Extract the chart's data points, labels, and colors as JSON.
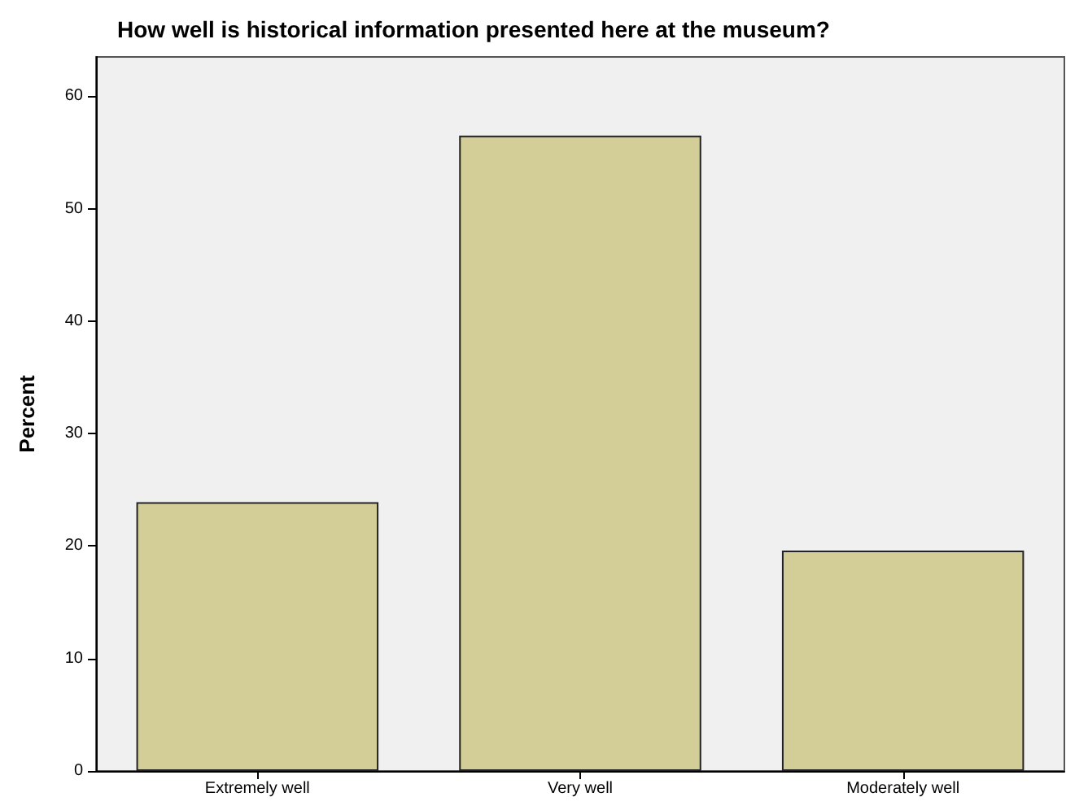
{
  "chart_data": {
    "type": "bar",
    "title": "How well is historical information presented here at the museum?",
    "ylabel": "Percent",
    "categories": [
      "Extremely well",
      "Very well",
      "Moderately well"
    ],
    "values": [
      23.9,
      56.5,
      19.6
    ],
    "color": "#d3ce97",
    "ylim": [
      0,
      63.5
    ],
    "yticks": [
      0,
      10,
      20,
      30,
      40,
      50,
      60
    ],
    "grid": false
  }
}
